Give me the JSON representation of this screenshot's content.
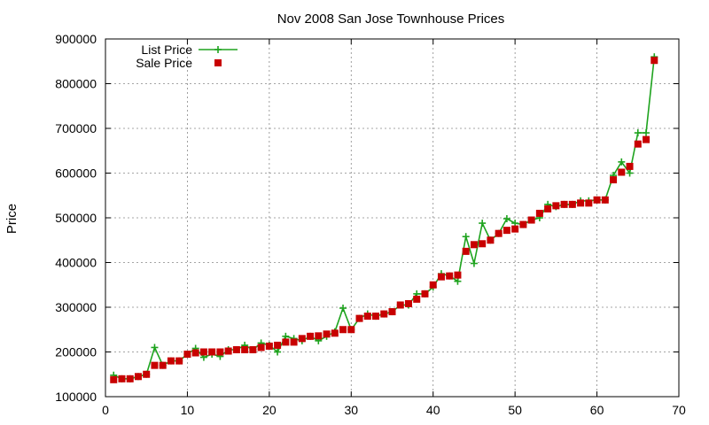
{
  "chart_data": {
    "type": "line",
    "title": "Nov 2008 San Jose Townhouse Prices",
    "xlabel": "",
    "ylabel": "Price",
    "xlim": [
      0,
      70
    ],
    "ylim": [
      100000,
      900000
    ],
    "xticks": [
      0,
      10,
      20,
      30,
      40,
      50,
      60,
      70
    ],
    "yticks": [
      100000,
      200000,
      300000,
      400000,
      500000,
      600000,
      700000,
      800000,
      900000
    ],
    "grid": true,
    "legend_position": "top-left",
    "series": [
      {
        "name": "List Price",
        "style": "line-plus",
        "color": "#1ea31e",
        "x": [
          1,
          2,
          3,
          4,
          5,
          6,
          7,
          8,
          9,
          10,
          11,
          12,
          13,
          14,
          15,
          16,
          17,
          18,
          19,
          20,
          21,
          22,
          23,
          24,
          25,
          26,
          27,
          28,
          29,
          30,
          31,
          32,
          33,
          34,
          35,
          36,
          37,
          38,
          39,
          40,
          41,
          42,
          43,
          44,
          45,
          46,
          47,
          48,
          49,
          50,
          51,
          52,
          53,
          54,
          55,
          56,
          57,
          58,
          59,
          60,
          61,
          62,
          63,
          64,
          65,
          66,
          67
        ],
        "values": [
          148000,
          140000,
          140000,
          145000,
          150000,
          210000,
          170000,
          180000,
          180000,
          195000,
          208000,
          188000,
          195000,
          190000,
          205000,
          205000,
          215000,
          205000,
          220000,
          215000,
          200000,
          235000,
          230000,
          225000,
          235000,
          225000,
          235000,
          245000,
          298000,
          250000,
          275000,
          285000,
          280000,
          285000,
          290000,
          305000,
          305000,
          330000,
          330000,
          345000,
          375000,
          370000,
          358000,
          458000,
          398000,
          488000,
          450000,
          465000,
          498000,
          488000,
          485000,
          495000,
          500000,
          530000,
          525000,
          530000,
          530000,
          538000,
          538000,
          540000,
          540000,
          595000,
          625000,
          600000,
          690000,
          690000,
          860000
        ]
      },
      {
        "name": "Sale Price",
        "style": "square",
        "color": "#c80000",
        "x": [
          1,
          2,
          3,
          4,
          5,
          6,
          7,
          8,
          9,
          10,
          11,
          12,
          13,
          14,
          15,
          16,
          17,
          18,
          19,
          20,
          21,
          22,
          23,
          24,
          25,
          26,
          27,
          28,
          29,
          30,
          31,
          32,
          33,
          34,
          35,
          36,
          37,
          38,
          39,
          40,
          41,
          42,
          43,
          44,
          45,
          46,
          47,
          48,
          49,
          50,
          51,
          52,
          53,
          54,
          55,
          56,
          57,
          58,
          59,
          60,
          61,
          62,
          63,
          64,
          65,
          66,
          67
        ],
        "values": [
          138000,
          140000,
          140000,
          145000,
          150000,
          170000,
          170000,
          180000,
          180000,
          195000,
          198000,
          200000,
          200000,
          200000,
          202000,
          205000,
          205000,
          205000,
          210000,
          213000,
          215000,
          222000,
          222000,
          230000,
          235000,
          236000,
          240000,
          242000,
          250000,
          250000,
          275000,
          280000,
          280000,
          285000,
          290000,
          305000,
          308000,
          318000,
          330000,
          350000,
          368000,
          370000,
          372000,
          425000,
          440000,
          442000,
          450000,
          465000,
          472000,
          475000,
          485000,
          495000,
          510000,
          520000,
          527000,
          530000,
          530000,
          533000,
          533000,
          540000,
          540000,
          585000,
          602000,
          615000,
          665000,
          675000,
          852000
        ]
      }
    ]
  }
}
